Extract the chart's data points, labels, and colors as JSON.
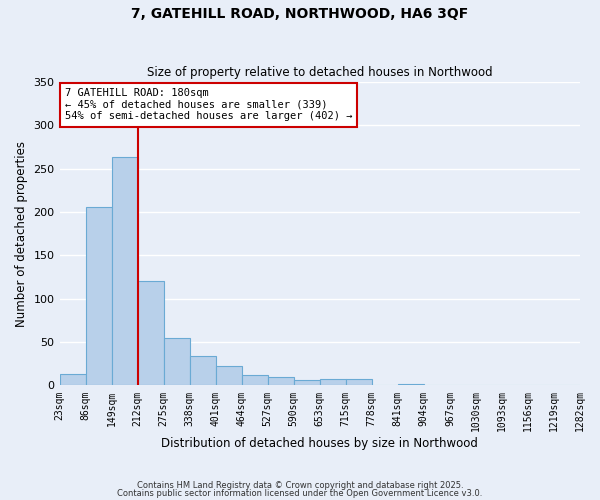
{
  "title": "7, GATEHILL ROAD, NORTHWOOD, HA6 3QF",
  "subtitle": "Size of property relative to detached houses in Northwood",
  "xlabel": "Distribution of detached houses by size in Northwood",
  "ylabel": "Number of detached properties",
  "bar_values": [
    13,
    206,
    263,
    121,
    55,
    34,
    23,
    12,
    10,
    6,
    7,
    8,
    1,
    2,
    1,
    0,
    0,
    1,
    0,
    1
  ],
  "bin_labels": [
    "23sqm",
    "86sqm",
    "149sqm",
    "212sqm",
    "275sqm",
    "338sqm",
    "401sqm",
    "464sqm",
    "527sqm",
    "590sqm",
    "653sqm",
    "715sqm",
    "778sqm",
    "841sqm",
    "904sqm",
    "967sqm",
    "1030sqm",
    "1093sqm",
    "1156sqm",
    "1219sqm",
    "1282sqm"
  ],
  "bar_color": "#b8d0ea",
  "bar_edge_color": "#6aaad4",
  "bg_color": "#e8eef8",
  "grid_color": "#ffffff",
  "vline_x": 2.5,
  "vline_color": "#cc0000",
  "annotation_text": "7 GATEHILL ROAD: 180sqm\n← 45% of detached houses are smaller (339)\n54% of semi-detached houses are larger (402) →",
  "annotation_box_color": "#ffffff",
  "annotation_box_edge_color": "#cc0000",
  "ylim": [
    0,
    350
  ],
  "yticks": [
    0,
    50,
    100,
    150,
    200,
    250,
    300,
    350
  ],
  "footnote1": "Contains HM Land Registry data © Crown copyright and database right 2025.",
  "footnote2": "Contains public sector information licensed under the Open Government Licence v3.0."
}
